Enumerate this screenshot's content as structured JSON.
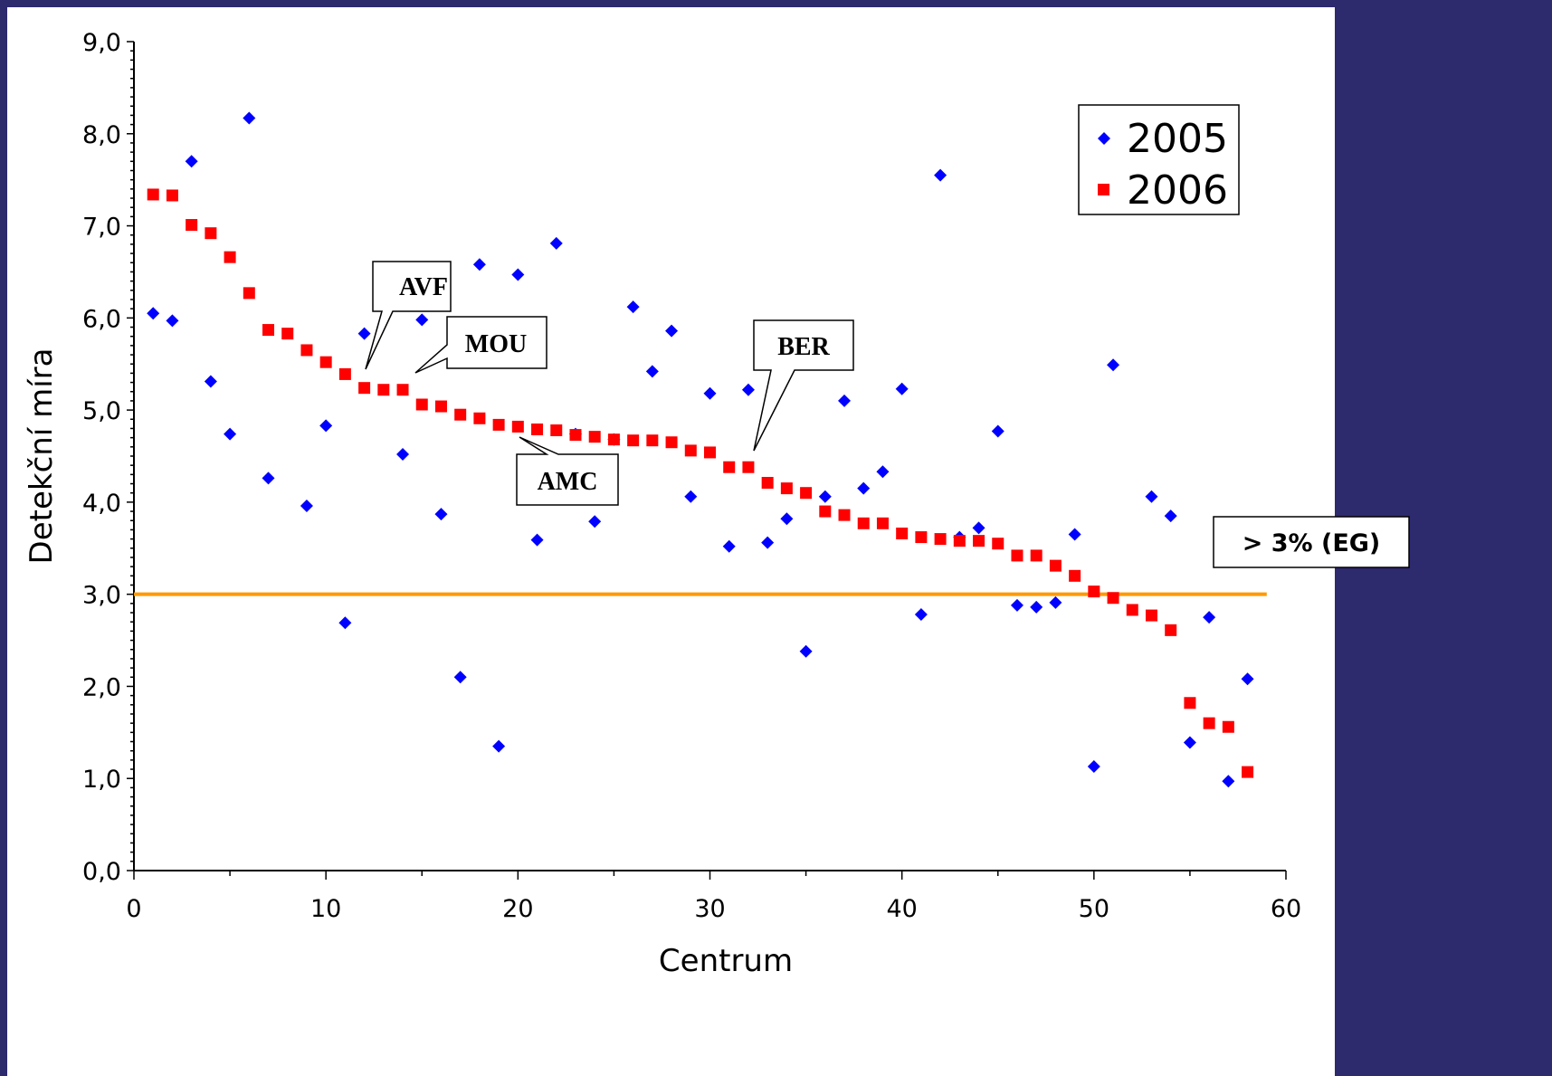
{
  "chart_data": {
    "type": "scatter",
    "title": "",
    "xlabel": "Centrum",
    "ylabel": "Detekční míra",
    "xlim": [
      0,
      60
    ],
    "ylim": [
      0,
      9
    ],
    "x_ticks": [
      0,
      10,
      20,
      30,
      40,
      50,
      60
    ],
    "x_tick_labels": [
      "0",
      "10",
      "20",
      "30",
      "40",
      "50",
      "60"
    ],
    "y_ticks": [
      0,
      1,
      2,
      3,
      4,
      5,
      6,
      7,
      8,
      9
    ],
    "y_tick_labels": [
      "0,0",
      "1,0",
      "2,0",
      "3,0",
      "4,0",
      "5,0",
      "6,0",
      "7,0",
      "8,0",
      "9,0"
    ],
    "legend_position": "top-right",
    "grid": false,
    "series": [
      {
        "name": "2005",
        "color": "#0000ff",
        "marker": "diamond",
        "points": [
          [
            1,
            6.05
          ],
          [
            2,
            5.97
          ],
          [
            3,
            7.7
          ],
          [
            4,
            5.31
          ],
          [
            5,
            4.74
          ],
          [
            6,
            8.17
          ],
          [
            7,
            4.26
          ],
          [
            9,
            3.96
          ],
          [
            10,
            4.83
          ],
          [
            11,
            2.69
          ],
          [
            12,
            5.83
          ],
          [
            14,
            4.52
          ],
          [
            15,
            5.98
          ],
          [
            16,
            3.87
          ],
          [
            17,
            2.1
          ],
          [
            18,
            6.58
          ],
          [
            19,
            1.35
          ],
          [
            20,
            6.47
          ],
          [
            21,
            3.59
          ],
          [
            22,
            6.81
          ],
          [
            23,
            4.74
          ],
          [
            24,
            3.79
          ],
          [
            25,
            4.68
          ],
          [
            26,
            6.12
          ],
          [
            27,
            5.42
          ],
          [
            28,
            5.86
          ],
          [
            29,
            4.06
          ],
          [
            30,
            5.18
          ],
          [
            31,
            3.52
          ],
          [
            32,
            5.22
          ],
          [
            33,
            3.56
          ],
          [
            34,
            3.82
          ],
          [
            35,
            2.38
          ],
          [
            36,
            4.06
          ],
          [
            37,
            5.1
          ],
          [
            38,
            4.15
          ],
          [
            39,
            4.33
          ],
          [
            40,
            5.23
          ],
          [
            41,
            2.78
          ],
          [
            42,
            7.55
          ],
          [
            43,
            3.62
          ],
          [
            44,
            3.72
          ],
          [
            45,
            4.77
          ],
          [
            46,
            2.88
          ],
          [
            47,
            2.86
          ],
          [
            48,
            2.91
          ],
          [
            49,
            3.65
          ],
          [
            50,
            1.13
          ],
          [
            51,
            5.49
          ],
          [
            53,
            4.06
          ],
          [
            54,
            3.85
          ],
          [
            55,
            1.39
          ],
          [
            56,
            2.75
          ],
          [
            57,
            0.97
          ],
          [
            58,
            2.08
          ]
        ]
      },
      {
        "name": "2006",
        "color": "#ff0000",
        "marker": "square",
        "points": [
          [
            1,
            7.34
          ],
          [
            2,
            7.33
          ],
          [
            3,
            7.01
          ],
          [
            4,
            6.92
          ],
          [
            5,
            6.66
          ],
          [
            6,
            6.27
          ],
          [
            7,
            5.87
          ],
          [
            8,
            5.83
          ],
          [
            9,
            5.65
          ],
          [
            10,
            5.52
          ],
          [
            11,
            5.39
          ],
          [
            12,
            5.24
          ],
          [
            13,
            5.22
          ],
          [
            14,
            5.22
          ],
          [
            15,
            5.06
          ],
          [
            16,
            5.04
          ],
          [
            17,
            4.95
          ],
          [
            18,
            4.91
          ],
          [
            19,
            4.84
          ],
          [
            20,
            4.82
          ],
          [
            21,
            4.79
          ],
          [
            22,
            4.78
          ],
          [
            23,
            4.73
          ],
          [
            24,
            4.71
          ],
          [
            25,
            4.68
          ],
          [
            26,
            4.67
          ],
          [
            27,
            4.67
          ],
          [
            28,
            4.65
          ],
          [
            29,
            4.56
          ],
          [
            30,
            4.54
          ],
          [
            31,
            4.38
          ],
          [
            32,
            4.38
          ],
          [
            33,
            4.21
          ],
          [
            34,
            4.15
          ],
          [
            35,
            4.1
          ],
          [
            36,
            3.9
          ],
          [
            37,
            3.86
          ],
          [
            38,
            3.77
          ],
          [
            39,
            3.77
          ],
          [
            40,
            3.66
          ],
          [
            41,
            3.62
          ],
          [
            42,
            3.6
          ],
          [
            43,
            3.58
          ],
          [
            44,
            3.58
          ],
          [
            45,
            3.55
          ],
          [
            46,
            3.42
          ],
          [
            47,
            3.42
          ],
          [
            48,
            3.31
          ],
          [
            49,
            3.2
          ],
          [
            50,
            3.03
          ],
          [
            51,
            2.96
          ],
          [
            52,
            2.83
          ],
          [
            53,
            2.77
          ],
          [
            54,
            2.61
          ],
          [
            55,
            1.82
          ],
          [
            56,
            1.6
          ],
          [
            57,
            1.56
          ],
          [
            58,
            1.07
          ]
        ]
      }
    ],
    "reference_line": {
      "y": 3.0,
      "x_range": [
        0,
        59
      ],
      "color": "#ff9900"
    },
    "threshold_label": "> 3% (EG)",
    "annotations": [
      {
        "text": "AVF",
        "target": [
          12,
          5.24
        ]
      },
      {
        "text": "MOU",
        "target": [
          14,
          5.22
        ]
      },
      {
        "text": "AMC",
        "target": [
          20,
          4.82
        ]
      },
      {
        "text": "BER",
        "target": [
          32,
          4.38
        ]
      }
    ]
  }
}
